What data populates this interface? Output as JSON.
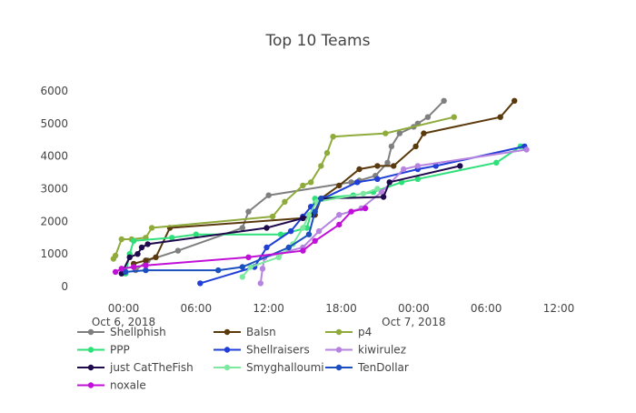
{
  "chart_data": {
    "type": "line",
    "title": "Top 10 Teams",
    "xlabel": "",
    "ylabel": "",
    "ylim": [
      0,
      6000
    ],
    "xlim": [
      "2018-10-05 20:10",
      "2018-10-07 12:00"
    ],
    "y_ticks": [
      0,
      1000,
      2000,
      3000,
      4000,
      5000,
      6000
    ],
    "x_ticks": [
      {
        "t": "2018-10-06 00:00",
        "label": "00:00",
        "sublabel": "Oct 6, 2018"
      },
      {
        "t": "2018-10-06 06:00",
        "label": "06:00",
        "sublabel": ""
      },
      {
        "t": "2018-10-06 12:00",
        "label": "12:00",
        "sublabel": ""
      },
      {
        "t": "2018-10-06 18:00",
        "label": "18:00",
        "sublabel": ""
      },
      {
        "t": "2018-10-07 00:00",
        "label": "00:00",
        "sublabel": "Oct 7, 2018"
      },
      {
        "t": "2018-10-07 06:00",
        "label": "06:00",
        "sublabel": ""
      },
      {
        "t": "2018-10-07 12:00",
        "label": "12:00",
        "sublabel": ""
      }
    ],
    "grid": false,
    "legend_position": "bottom",
    "series": [
      {
        "name": "Shellphish",
        "color": "#7f7f7f",
        "points": [
          [
            "2018-10-06 01:00",
            500
          ],
          [
            "2018-10-06 02:00",
            800
          ],
          [
            "2018-10-06 04:30",
            1100
          ],
          [
            "2018-10-06 09:50",
            1800
          ],
          [
            "2018-10-06 10:20",
            2300
          ],
          [
            "2018-10-06 12:00",
            2800
          ],
          [
            "2018-10-06 18:50",
            3200
          ],
          [
            "2018-10-06 19:30",
            3250
          ],
          [
            "2018-10-06 20:50",
            3400
          ],
          [
            "2018-10-06 21:50",
            3800
          ],
          [
            "2018-10-06 22:10",
            4300
          ],
          [
            "2018-10-06 22:50",
            4700
          ],
          [
            "2018-10-07 00:00",
            4900
          ],
          [
            "2018-10-07 00:20",
            5000
          ],
          [
            "2018-10-07 01:10",
            5200
          ],
          [
            "2018-10-07 02:30",
            5700
          ]
        ]
      },
      {
        "name": "Balsn",
        "color": "#5a3a0c",
        "points": [
          [
            "2018-10-06 00:50",
            700
          ],
          [
            "2018-10-06 01:50",
            800
          ],
          [
            "2018-10-06 02:40",
            900
          ],
          [
            "2018-10-06 03:50",
            1800
          ],
          [
            "2018-10-06 14:50",
            2100
          ],
          [
            "2018-10-06 15:50",
            2200
          ],
          [
            "2018-10-06 16:20",
            2700
          ],
          [
            "2018-10-06 17:50",
            3100
          ],
          [
            "2018-10-06 19:30",
            3600
          ],
          [
            "2018-10-06 21:00",
            3700
          ],
          [
            "2018-10-06 22:20",
            3700
          ],
          [
            "2018-10-07 00:10",
            4300
          ],
          [
            "2018-10-07 00:50",
            4700
          ],
          [
            "2018-10-07 07:10",
            5200
          ],
          [
            "2018-10-07 08:20",
            5700
          ]
        ]
      },
      {
        "name": "p4",
        "color": "#8eab3c",
        "points": [
          [
            "2018-10-05 23:10",
            850
          ],
          [
            "2018-10-05 23:20",
            950
          ],
          [
            "2018-10-05 23:50",
            1450
          ],
          [
            "2018-10-06 00:40",
            1450
          ],
          [
            "2018-10-06 01:50",
            1500
          ],
          [
            "2018-10-06 02:20",
            1800
          ],
          [
            "2018-10-06 12:20",
            2150
          ],
          [
            "2018-10-06 13:20",
            2600
          ],
          [
            "2018-10-06 14:50",
            3100
          ],
          [
            "2018-10-06 15:30",
            3200
          ],
          [
            "2018-10-06 16:20",
            3700
          ],
          [
            "2018-10-06 16:50",
            4100
          ],
          [
            "2018-10-06 17:20",
            4600
          ],
          [
            "2018-10-06 21:40",
            4700
          ],
          [
            "2018-10-07 03:20",
            5200
          ]
        ]
      },
      {
        "name": "PPP",
        "color": "#2fe07a",
        "points": [
          [
            "2018-10-06 00:10",
            400
          ],
          [
            "2018-10-06 00:30",
            1000
          ],
          [
            "2018-10-06 00:50",
            1400
          ],
          [
            "2018-10-06 04:00",
            1500
          ],
          [
            "2018-10-06 06:00",
            1600
          ],
          [
            "2018-10-06 13:00",
            1600
          ],
          [
            "2018-10-06 15:10",
            1800
          ],
          [
            "2018-10-06 15:50",
            2700
          ],
          [
            "2018-10-06 19:00",
            2800
          ],
          [
            "2018-10-06 20:40",
            2900
          ],
          [
            "2018-10-06 23:00",
            3200
          ],
          [
            "2018-10-07 00:20",
            3300
          ],
          [
            "2018-10-07 06:50",
            3800
          ],
          [
            "2018-10-07 08:50",
            4300
          ]
        ]
      },
      {
        "name": "Shellraisers",
        "color": "#1f3fd6",
        "points": [
          [
            "2018-10-06 06:20",
            100
          ],
          [
            "2018-10-06 10:50",
            600
          ],
          [
            "2018-10-06 11:50",
            1200
          ],
          [
            "2018-10-06 13:50",
            1700
          ],
          [
            "2018-10-06 14:50",
            2150
          ],
          [
            "2018-10-06 15:30",
            2450
          ],
          [
            "2018-10-06 16:30",
            2700
          ],
          [
            "2018-10-06 19:20",
            3200
          ],
          [
            "2018-10-06 21:00",
            3300
          ],
          [
            "2018-10-07 00:20",
            3600
          ],
          [
            "2018-10-07 01:50",
            3700
          ],
          [
            "2018-10-07 09:10",
            4300
          ]
        ]
      },
      {
        "name": "kiwirulez",
        "color": "#b783e0",
        "points": [
          [
            "2018-10-06 11:20",
            100
          ],
          [
            "2018-10-06 11:30",
            550
          ],
          [
            "2018-10-06 11:40",
            900
          ],
          [
            "2018-10-06 14:50",
            1200
          ],
          [
            "2018-10-06 16:10",
            1700
          ],
          [
            "2018-10-06 17:50",
            2200
          ],
          [
            "2018-10-06 19:40",
            2400
          ],
          [
            "2018-10-06 21:20",
            2900
          ],
          [
            "2018-10-06 23:10",
            3600
          ],
          [
            "2018-10-07 00:20",
            3700
          ],
          [
            "2018-10-07 09:20",
            4200
          ]
        ]
      },
      {
        "name": "just CatTheFish",
        "color": "#1f0a4c",
        "points": [
          [
            "2018-10-05 23:50",
            400
          ],
          [
            "2018-10-06 00:30",
            900
          ],
          [
            "2018-10-06 01:10",
            1000
          ],
          [
            "2018-10-06 01:30",
            1200
          ],
          [
            "2018-10-06 02:00",
            1300
          ],
          [
            "2018-10-06 11:50",
            1800
          ],
          [
            "2018-10-06 14:50",
            2100
          ],
          [
            "2018-10-06 15:40",
            2200
          ],
          [
            "2018-10-06 16:20",
            2700
          ],
          [
            "2018-10-06 21:30",
            2750
          ],
          [
            "2018-10-06 22:00",
            3200
          ],
          [
            "2018-10-07 03:50",
            3700
          ]
        ]
      },
      {
        "name": "Smyghalloumi",
        "color": "#7de8a0",
        "points": [
          [
            "2018-10-06 09:50",
            300
          ],
          [
            "2018-10-06 10:30",
            600
          ],
          [
            "2018-10-06 12:50",
            900
          ],
          [
            "2018-10-06 14:00",
            1300
          ],
          [
            "2018-10-06 14:50",
            1800
          ],
          [
            "2018-10-06 15:20",
            2200
          ],
          [
            "2018-10-06 16:00",
            2600
          ],
          [
            "2018-10-06 19:50",
            2850
          ],
          [
            "2018-10-06 21:00",
            3000
          ]
        ]
      },
      {
        "name": "TenDollar",
        "color": "#1b4fc0",
        "points": [
          [
            "2018-10-06 00:10",
            450
          ],
          [
            "2018-10-06 01:50",
            500
          ],
          [
            "2018-10-06 07:50",
            500
          ],
          [
            "2018-10-06 09:50",
            600
          ],
          [
            "2018-10-06 13:40",
            1200
          ],
          [
            "2018-10-06 15:20",
            1600
          ],
          [
            "2018-10-06 15:50",
            2300
          ],
          [
            "2018-10-06 16:20",
            2700
          ]
        ]
      },
      {
        "name": "noxale",
        "color": "#c010d8",
        "points": [
          [
            "2018-10-05 23:20",
            450
          ],
          [
            "2018-10-05 23:50",
            550
          ],
          [
            "2018-10-06 00:50",
            600
          ],
          [
            "2018-10-06 01:50",
            650
          ],
          [
            "2018-10-06 10:20",
            900
          ],
          [
            "2018-10-06 14:50",
            1100
          ],
          [
            "2018-10-06 15:50",
            1400
          ],
          [
            "2018-10-06 17:50",
            1900
          ],
          [
            "2018-10-06 18:50",
            2300
          ],
          [
            "2018-10-06 20:00",
            2400
          ]
        ]
      }
    ]
  }
}
